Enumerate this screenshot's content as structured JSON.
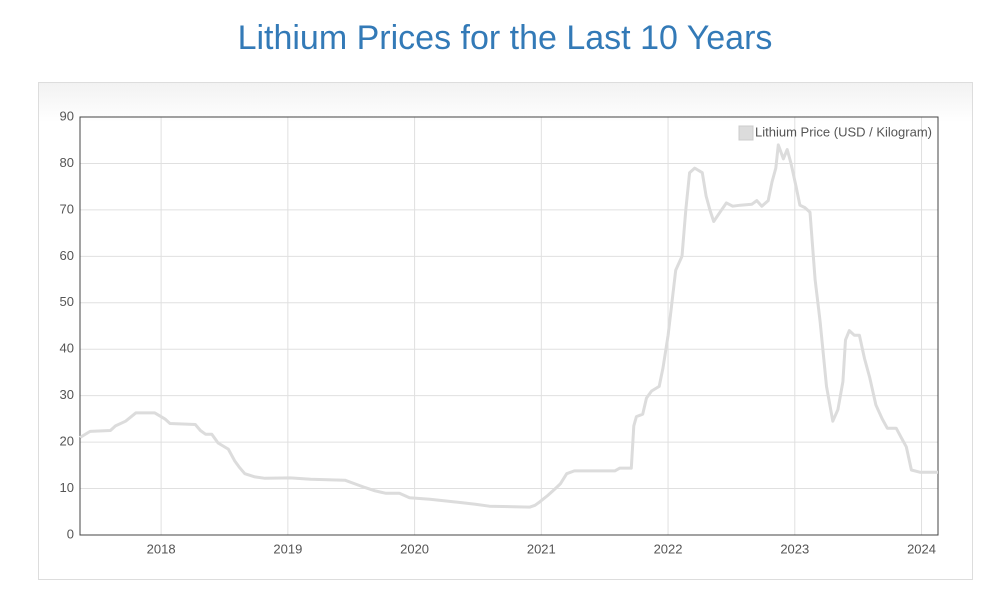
{
  "chart_data": {
    "type": "line",
    "title": "Lithium Prices for the Last 10 Years",
    "x": [
      2017.36,
      2017.44,
      2017.6,
      2017.64,
      2017.72,
      2017.8,
      2017.95,
      2018.03,
      2018.07,
      2018.27,
      2018.31,
      2018.35,
      2018.4,
      2018.45,
      2018.53,
      2018.58,
      2018.62,
      2018.66,
      2018.74,
      2018.82,
      2019.02,
      2019.18,
      2019.45,
      2019.53,
      2019.61,
      2019.69,
      2019.77,
      2019.88,
      2019.96,
      2020.12,
      2020.36,
      2020.48,
      2020.59,
      2020.91,
      2020.95,
      2020.99,
      2021.05,
      2021.11,
      2021.15,
      2021.2,
      2021.26,
      2021.58,
      2021.62,
      2021.71,
      2021.73,
      2021.75,
      2021.8,
      2021.83,
      2021.87,
      2021.93,
      2021.96,
      2022.0,
      2022.03,
      2022.06,
      2022.11,
      2022.14,
      2022.17,
      2022.21,
      2022.27,
      2022.3,
      2022.33,
      2022.36,
      2022.41,
      2022.46,
      2022.51,
      2022.57,
      2022.66,
      2022.7,
      2022.74,
      2022.79,
      2022.82,
      2022.85,
      2022.87,
      2022.91,
      2022.94,
      2022.97,
      2023.01,
      2023.04,
      2023.08,
      2023.12,
      2023.16,
      2023.2,
      2023.25,
      2023.3,
      2023.34,
      2023.38,
      2023.4,
      2023.43,
      2023.47,
      2023.51,
      2023.55,
      2023.59,
      2023.64,
      2023.69,
      2023.73,
      2023.8,
      2023.84,
      2023.88,
      2023.92,
      2023.99,
      2024.06,
      2024.13
    ],
    "series": [
      {
        "name": "Lithium Price (USD / Kilogram)",
        "color": "#dcdcdc",
        "values": [
          21,
          22.3,
          22.5,
          23.5,
          24.5,
          26.3,
          26.3,
          25,
          24,
          23.8,
          22.5,
          21.7,
          21.7,
          19.8,
          18.5,
          16,
          14.5,
          13.2,
          12.5,
          12.2,
          12.3,
          12,
          11.8,
          11,
          10.2,
          9.5,
          9,
          9,
          8,
          7.7,
          7,
          6.6,
          6.2,
          6,
          6.4,
          7.2,
          8.5,
          10,
          11,
          13.2,
          13.8,
          13.8,
          14.4,
          14.4,
          23.5,
          25.5,
          26,
          29.5,
          31,
          32,
          36,
          43,
          50,
          57,
          60,
          70,
          78,
          79,
          78,
          73,
          70,
          67.5,
          69.5,
          71.5,
          70.8,
          71,
          71.2,
          72,
          70.8,
          72,
          76,
          79,
          84,
          81,
          83,
          80,
          75,
          71,
          70.5,
          69.5,
          55,
          46,
          32,
          24.5,
          27,
          33,
          42,
          44,
          43,
          43,
          38,
          34,
          28,
          25,
          23,
          23,
          21,
          19,
          14,
          13.5,
          13.5,
          13.5
        ]
      }
    ],
    "xlim": [
      2017.36,
      2024.13
    ],
    "xticks": [
      2018,
      2019,
      2020,
      2021,
      2022,
      2023,
      2024
    ],
    "ylim": [
      0,
      90
    ],
    "yticks": [
      0,
      10,
      20,
      30,
      40,
      50,
      60,
      70,
      80,
      90
    ],
    "grid": true,
    "legend": "top-right"
  }
}
